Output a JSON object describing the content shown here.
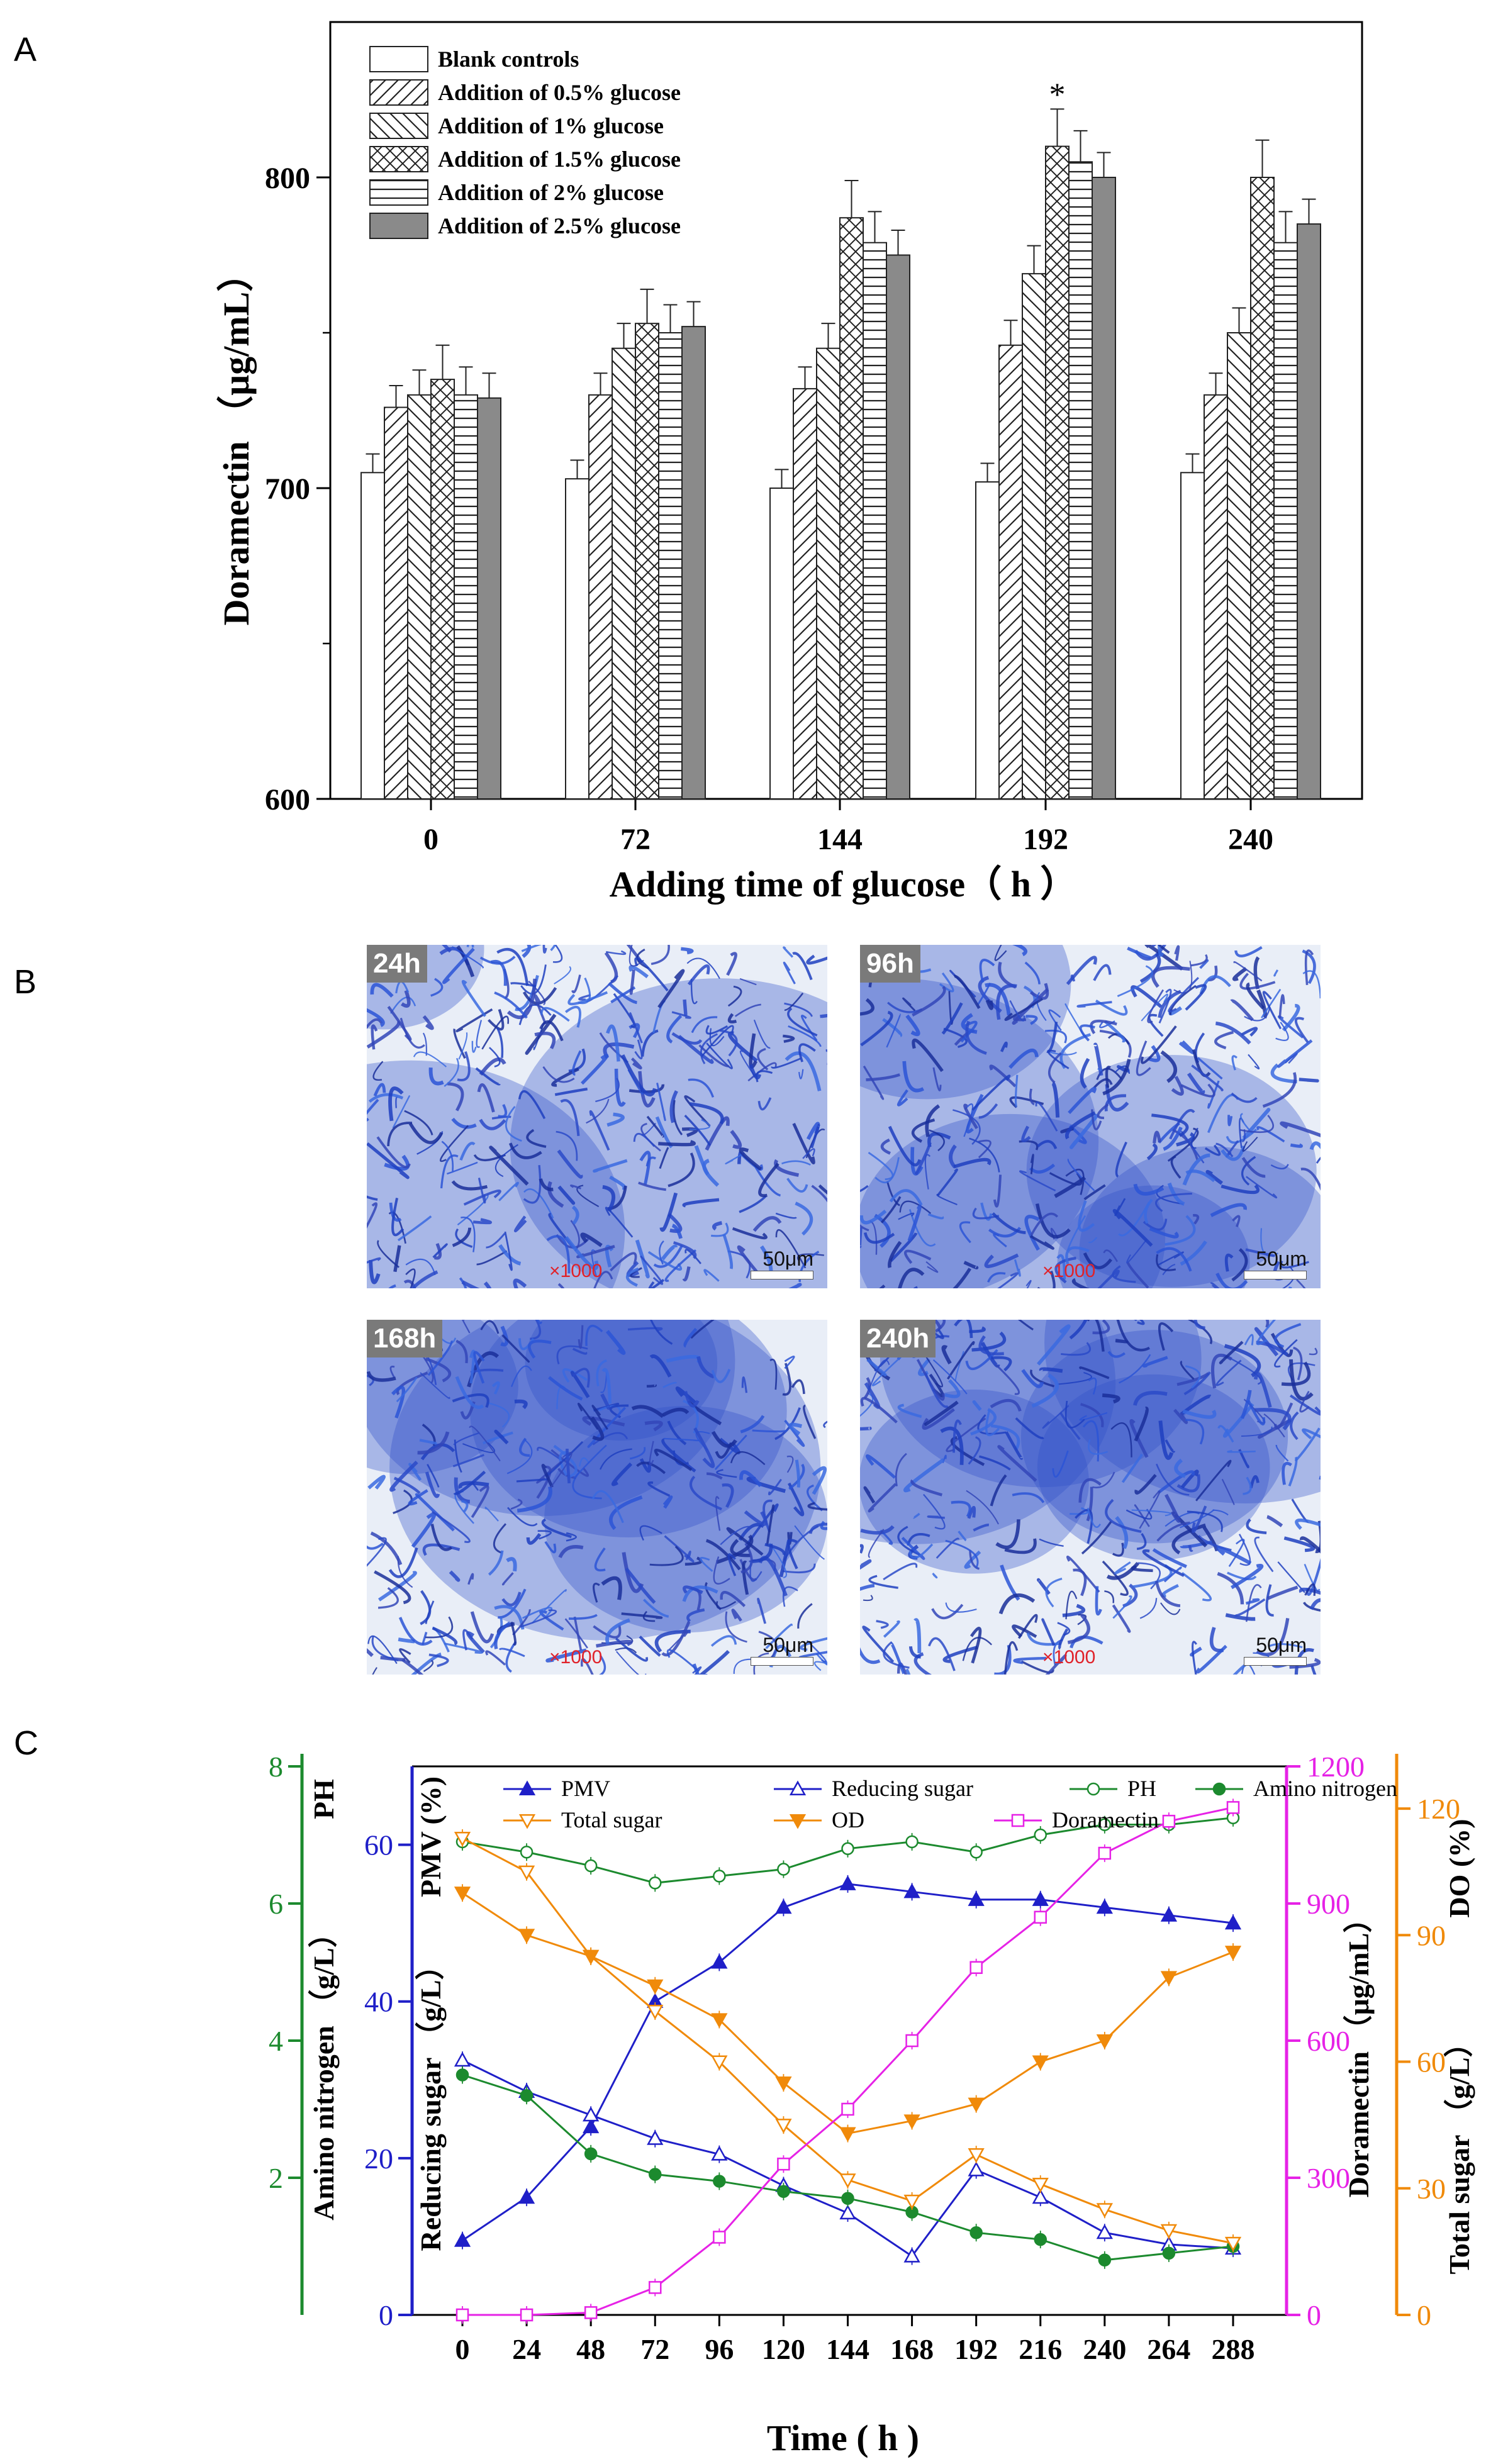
{
  "panels": {
    "a": "A",
    "b": "B",
    "c": "C"
  },
  "chart_data": [
    {
      "type": "bar",
      "panel": "A",
      "ylabel": "Doramectin （μg/mL）",
      "xlabel": "Adding time of glucose（ h ）",
      "ylim": [
        600,
        850
      ],
      "yticks": [
        600,
        700,
        800
      ],
      "categories": [
        "0",
        "72",
        "144",
        "192",
        "240"
      ],
      "legend_position": "top-left",
      "significance_mark": {
        "text": "*",
        "category": "192",
        "series": "Addition of 1.5% glucose"
      },
      "series": [
        {
          "name": "Blank controls",
          "pattern": "none",
          "values": [
            705,
            703,
            700,
            702,
            705
          ],
          "errors": [
            6,
            6,
            6,
            6,
            6
          ]
        },
        {
          "name": "Addition of 0.5% glucose",
          "pattern": "forward-hatch",
          "values": [
            726,
            730,
            732,
            746,
            730
          ],
          "errors": [
            7,
            7,
            7,
            8,
            7
          ]
        },
        {
          "name": "Addition of 1% glucose",
          "pattern": "back-hatch",
          "values": [
            730,
            745,
            745,
            769,
            750
          ],
          "errors": [
            8,
            8,
            8,
            9,
            8
          ]
        },
        {
          "name": "Addition of 1.5% glucose",
          "pattern": "cross-hatch",
          "values": [
            735,
            753,
            787,
            810,
            800
          ],
          "errors": [
            11,
            11,
            12,
            12,
            12
          ]
        },
        {
          "name": "Addition of 2% glucose",
          "pattern": "horizontal-lines",
          "values": [
            730,
            750,
            779,
            805,
            779
          ],
          "errors": [
            9,
            9,
            10,
            10,
            10
          ]
        },
        {
          "name": "Addition of 2.5% glucose",
          "pattern": "solid-gray",
          "values": [
            729,
            752,
            775,
            800,
            785
          ],
          "errors": [
            8,
            8,
            8,
            8,
            8
          ]
        }
      ]
    },
    {
      "type": "line",
      "panel": "C",
      "xlabel": "Time ( h )",
      "x": [
        0,
        24,
        48,
        72,
        96,
        120,
        144,
        168,
        192,
        216,
        240,
        264,
        288
      ],
      "axes": {
        "ph": {
          "label": "PH",
          "range": [
            0,
            8
          ],
          "ticks": [
            2,
            4,
            6,
            8
          ],
          "color": "#1c8a2e"
        },
        "amino": {
          "label": "Amino nitrogen （g/L）",
          "range": [
            0,
            8
          ],
          "color": "#1c8a2e"
        },
        "blue": {
          "label_pmv": "PMV (%)",
          "label_rs": "Reducing sugar （g/L）",
          "range": [
            0,
            70
          ],
          "ticks": [
            0,
            20,
            40,
            60
          ],
          "color": "#1f1fc8"
        },
        "dora": {
          "label": "Doramectin （μg/mL）",
          "range": [
            0,
            1200
          ],
          "ticks": [
            0,
            300,
            600,
            900,
            1200
          ],
          "color": "#e622e6"
        },
        "orange": {
          "label_do": "DO (%)",
          "label_ts": "Total sugar （g/L）",
          "range": [
            0,
            130
          ],
          "ticks": [
            0,
            30,
            60,
            90,
            120
          ],
          "color": "#f08a0a"
        }
      },
      "series": [
        {
          "name": "PMV",
          "axis": "blue",
          "color": "#1f1fc8",
          "marker": "filled-triangle",
          "values": [
            9.5,
            15,
            24,
            40,
            45,
            52,
            55,
            54,
            53,
            53,
            52,
            51,
            50
          ]
        },
        {
          "name": "Reducing sugar",
          "axis": "blue",
          "color": "#1f1fc8",
          "marker": "open-triangle",
          "values": [
            32.5,
            28.5,
            25.5,
            22.5,
            20.5,
            16.5,
            13,
            7.5,
            18.5,
            15,
            10.5,
            9,
            8.5
          ]
        },
        {
          "name": "PH",
          "axis": "ph",
          "color": "#1c8a2e",
          "marker": "open-circle",
          "values": [
            6.9,
            6.75,
            6.55,
            6.3,
            6.4,
            6.5,
            6.8,
            6.9,
            6.75,
            7.0,
            7.15,
            7.15,
            7.25
          ]
        },
        {
          "name": "Amino nitrogen",
          "axis": "ph",
          "color": "#1c8a2e",
          "marker": "filled-circle",
          "values": [
            3.5,
            3.2,
            2.35,
            2.05,
            1.95,
            1.8,
            1.7,
            1.5,
            1.2,
            1.1,
            0.8,
            0.9,
            1.0
          ]
        },
        {
          "name": "Total sugar",
          "axis": "orange",
          "color": "#f08a0a",
          "marker": "open-inverted-triangle",
          "values": [
            113,
            105,
            85,
            72,
            60,
            45,
            32,
            27,
            38,
            31,
            25,
            20,
            17
          ]
        },
        {
          "name": "OD",
          "axis": "orange",
          "color": "#f08a0a",
          "marker": "filled-inverted-triangle",
          "values": [
            100,
            90,
            85,
            78,
            70,
            55,
            43,
            46,
            50,
            60,
            65,
            80,
            86
          ]
        },
        {
          "name": "Doramectin",
          "axis": "dora",
          "color": "#e622e6",
          "marker": "open-square",
          "values": [
            0,
            0,
            5,
            60,
            170,
            330,
            450,
            600,
            760,
            870,
            1010,
            1080,
            1110
          ]
        }
      ]
    }
  ],
  "micrographs": [
    {
      "label": "24h",
      "magnification": "×1000",
      "scale": "50μm"
    },
    {
      "label": "96h",
      "magnification": "×1000",
      "scale": "50μm"
    },
    {
      "label": "168h",
      "magnification": "×1000",
      "scale": "50μm"
    },
    {
      "label": "240h",
      "magnification": "×1000",
      "scale": "50μm"
    }
  ]
}
